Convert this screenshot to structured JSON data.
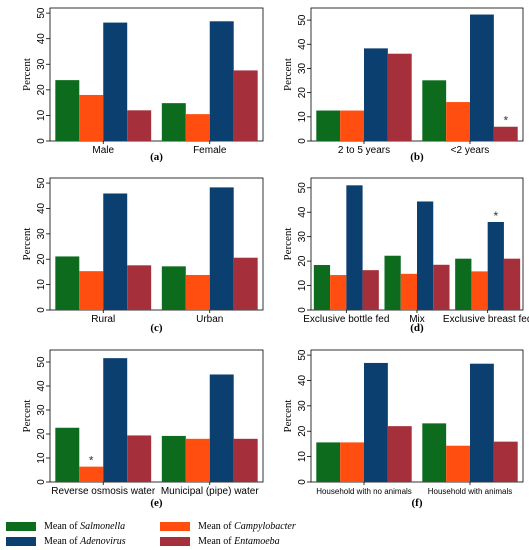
{
  "colors": {
    "salmonella": "#0d6b1e",
    "campylobacter": "#ff4e0f",
    "adenovirus": "#0b3f6f",
    "entamoeba": "#a5303b"
  },
  "y_axis_label": "Percent",
  "legend": [
    {
      "prefix": "Mean of ",
      "name": "Salmonella",
      "color_key": "salmonella"
    },
    {
      "prefix": "Mean of ",
      "name": "Campylobacter",
      "color_key": "campylobacter"
    },
    {
      "prefix": "Mean of ",
      "name": "Adenovirus",
      "color_key": "adenovirus"
    },
    {
      "prefix": "Mean of ",
      "name": "Entamoeba",
      "color_key": "entamoeba"
    }
  ],
  "chart_data": [
    {
      "type": "bar",
      "panel_label": "(a)",
      "ylabel": "Percent",
      "ylim": [
        0,
        52
      ],
      "yticks": [
        0,
        10,
        20,
        30,
        40,
        50
      ],
      "categories": [
        "Male",
        "Female"
      ],
      "series": [
        {
          "name": "Salmonella",
          "values": [
            23.8,
            14.8
          ]
        },
        {
          "name": "Campylobacter",
          "values": [
            18.0,
            10.5
          ]
        },
        {
          "name": "Adenovirus",
          "values": [
            46.3,
            46.8
          ]
        },
        {
          "name": "Entamoeba",
          "values": [
            12.0,
            27.6
          ]
        }
      ],
      "annotations": []
    },
    {
      "type": "bar",
      "panel_label": "(b)",
      "ylabel": "Percent",
      "ylim": [
        0,
        55
      ],
      "yticks": [
        0,
        10,
        20,
        30,
        40,
        50
      ],
      "categories": [
        "2 to 5 years",
        "<2 years"
      ],
      "series": [
        {
          "name": "Salmonella",
          "values": [
            12.6,
            25.1
          ]
        },
        {
          "name": "Campylobacter",
          "values": [
            12.6,
            16.1
          ]
        },
        {
          "name": "Adenovirus",
          "values": [
            38.3,
            52.3
          ]
        },
        {
          "name": "Entamoeba",
          "values": [
            36.1,
            5.9
          ]
        }
      ],
      "annotations": [
        {
          "category": 1,
          "series": 3,
          "text": "*"
        }
      ]
    },
    {
      "type": "bar",
      "panel_label": "(c)",
      "ylabel": "Percent",
      "ylim": [
        0,
        52
      ],
      "yticks": [
        0,
        10,
        20,
        30,
        40,
        50
      ],
      "categories": [
        "Rural",
        "Urban"
      ],
      "series": [
        {
          "name": "Salmonella",
          "values": [
            21.1,
            17.2
          ]
        },
        {
          "name": "Campylobacter",
          "values": [
            15.3,
            13.8
          ]
        },
        {
          "name": "Adenovirus",
          "values": [
            45.9,
            48.3
          ]
        },
        {
          "name": "Entamoeba",
          "values": [
            17.6,
            20.6
          ]
        }
      ],
      "annotations": []
    },
    {
      "type": "bar",
      "panel_label": "(d)",
      "ylabel": "Percent",
      "ylim": [
        0,
        54
      ],
      "yticks": [
        0,
        10,
        20,
        30,
        40,
        50
      ],
      "categories": [
        "Exclusive bottle fed",
        "Mix",
        "Exclusive breast fed"
      ],
      "series": [
        {
          "name": "Salmonella",
          "values": [
            18.4,
            22.2,
            21.0
          ]
        },
        {
          "name": "Campylobacter",
          "values": [
            14.3,
            14.8,
            15.8
          ]
        },
        {
          "name": "Adenovirus",
          "values": [
            51.0,
            44.4,
            36.0
          ]
        },
        {
          "name": "Entamoeba",
          "values": [
            16.3,
            18.5,
            21.0
          ]
        }
      ],
      "annotations": [
        {
          "category": 2,
          "series": 2,
          "text": "*"
        }
      ]
    },
    {
      "type": "bar",
      "panel_label": "(e)",
      "ylabel": "Percent",
      "ylim": [
        0,
        55
      ],
      "yticks": [
        0,
        10,
        20,
        30,
        40,
        50
      ],
      "categories": [
        "Reverse osmosis water",
        "Municipal (pipe) water"
      ],
      "series": [
        {
          "name": "Salmonella",
          "values": [
            22.6,
            19.2
          ]
        },
        {
          "name": "Campylobacter",
          "values": [
            6.4,
            18.0
          ]
        },
        {
          "name": "Adenovirus",
          "values": [
            51.6,
            44.8
          ]
        },
        {
          "name": "Entamoeba",
          "values": [
            19.4,
            18.0
          ]
        }
      ],
      "annotations": [
        {
          "category": 0,
          "series": 1,
          "text": "*"
        }
      ]
    },
    {
      "type": "bar",
      "panel_label": "(f)",
      "ylabel": "Percent",
      "ylim": [
        0,
        52
      ],
      "yticks": [
        0,
        10,
        20,
        30,
        40,
        50
      ],
      "categories": [
        "Household with no animals",
        "Household with animals"
      ],
      "series": [
        {
          "name": "Salmonella",
          "values": [
            15.6,
            23.1
          ]
        },
        {
          "name": "Campylobacter",
          "values": [
            15.6,
            14.3
          ]
        },
        {
          "name": "Adenovirus",
          "values": [
            46.9,
            46.6
          ]
        },
        {
          "name": "Entamoeba",
          "values": [
            22.0,
            15.9
          ]
        }
      ],
      "annotations": []
    }
  ]
}
